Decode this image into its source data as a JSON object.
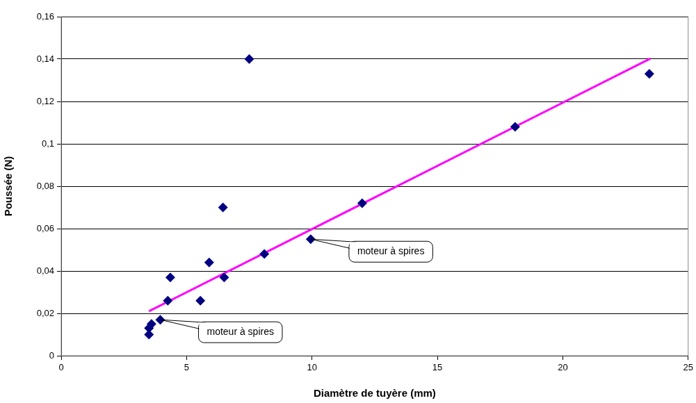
{
  "chart_data": {
    "type": "scatter",
    "xlabel": "Diamètre de tuyère (mm)",
    "ylabel": "Poussée (N)",
    "series": [
      {
        "type": "scatter",
        "color": "#000080",
        "marker": "diamond",
        "x": [
          7.5,
          23.45,
          18.1,
          12.0,
          6.45,
          9.95,
          8.1,
          5.9,
          4.35,
          6.5,
          4.25,
          5.55,
          3.95,
          3.6,
          3.5,
          3.5
        ],
        "values": [
          0.14,
          0.133,
          0.108,
          0.072,
          0.07,
          0.055,
          0.048,
          0.044,
          0.037,
          0.037,
          0.026,
          0.026,
          0.017,
          0.015,
          0.013,
          0.01
        ]
      },
      {
        "type": "line",
        "color": "#ff00ff",
        "marker": "none",
        "x": [
          3.5,
          23.5
        ],
        "values": [
          0.021,
          0.1403
        ]
      }
    ],
    "annotations": [
      {
        "text": "moteur à spires",
        "x": 3.95,
        "y": 0.017
      },
      {
        "text": "moteur à spires",
        "x": 9.95,
        "y": 0.055
      }
    ],
    "xlim": [
      0,
      25
    ],
    "xticks": [
      0,
      5,
      10,
      15,
      20,
      25
    ],
    "ylim": [
      0,
      0.16
    ],
    "yticks": [
      {
        "value": 0,
        "label": "0"
      },
      {
        "value": 0.02,
        "label": "0,02"
      },
      {
        "value": 0.04,
        "label": "0,04"
      },
      {
        "value": 0.06,
        "label": "0,06"
      },
      {
        "value": 0.08,
        "label": "0,08"
      },
      {
        "value": 0.1,
        "label": "0,1"
      },
      {
        "value": 0.12,
        "label": "0,12"
      },
      {
        "value": 0.14,
        "label": "0,14"
      },
      {
        "value": 0.16,
        "label": "0,16"
      }
    ],
    "grid": "y",
    "legend": false
  }
}
